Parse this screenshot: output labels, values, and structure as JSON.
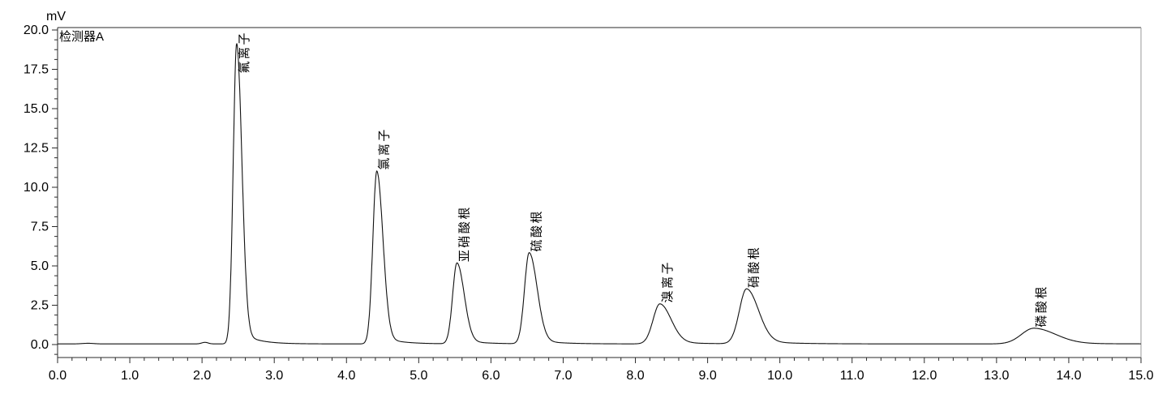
{
  "header": {
    "y_axis_unit": "mV",
    "detector_name": "检测器A"
  },
  "axis": {
    "x_tick_labels": [
      "0.0",
      "1.0",
      "2.0",
      "3.0",
      "4.0",
      "5.0",
      "6.0",
      "7.0",
      "8.0",
      "9.0",
      "10.0",
      "11.0",
      "12.0",
      "13.0",
      "14.0",
      "15.0"
    ],
    "y_tick_labels": [
      "0.0",
      "2.5",
      "5.0",
      "7.5",
      "10.0",
      "12.5",
      "15.0",
      "17.5",
      "20.0"
    ]
  },
  "colors": {
    "background": "#ffffff",
    "trace": "#111111",
    "frame": "#2a2a2a",
    "frame_right": "#9a9a9a",
    "tick": "#2a2a2a",
    "text": "#000000"
  },
  "chart_data": {
    "type": "line",
    "title": "检测器A",
    "xlabel": "",
    "ylabel": "mV",
    "xlim": [
      0.0,
      15.0
    ],
    "ylim": [
      -0.85,
      20.15
    ],
    "grid": false,
    "x_major_tick_step": 1.0,
    "x_minor_tick_step": 0.2,
    "y_major_tick_step": 2.5,
    "y_minor_tick_step": 0.625,
    "baseline_mv": 0.04,
    "peaks": [
      {
        "name": "氟离子",
        "retention_time_min": 2.48,
        "height_mv": 19.1,
        "sigma_left": 0.048,
        "sigma_right": 0.072,
        "tail_frac": 0.05,
        "tail_tau": 0.22
      },
      {
        "name": "氯离子",
        "retention_time_min": 4.42,
        "height_mv": 11.0,
        "sigma_left": 0.055,
        "sigma_right": 0.085,
        "tail_frac": 0.05,
        "tail_tau": 0.25
      },
      {
        "name": "亚硝酸根",
        "retention_time_min": 5.53,
        "height_mv": 5.15,
        "sigma_left": 0.06,
        "sigma_right": 0.1,
        "tail_frac": 0.055,
        "tail_tau": 0.28
      },
      {
        "name": "硫酸根",
        "retention_time_min": 6.53,
        "height_mv": 5.8,
        "sigma_left": 0.065,
        "sigma_right": 0.11,
        "tail_frac": 0.055,
        "tail_tau": 0.3
      },
      {
        "name": "溴离子",
        "retention_time_min": 8.34,
        "height_mv": 2.55,
        "sigma_left": 0.095,
        "sigma_right": 0.155,
        "tail_frac": 0.07,
        "tail_tau": 0.38
      },
      {
        "name": "硝酸根",
        "retention_time_min": 9.54,
        "height_mv": 3.5,
        "sigma_left": 0.1,
        "sigma_right": 0.165,
        "tail_frac": 0.07,
        "tail_tau": 0.42
      },
      {
        "name": "磷酸根",
        "retention_time_min": 13.52,
        "height_mv": 1.0,
        "sigma_left": 0.175,
        "sigma_right": 0.3,
        "tail_frac": 0.08,
        "tail_tau": 0.55
      }
    ],
    "baseline_bumps": [
      {
        "t_min": 2.04,
        "height_mv": 0.1,
        "sigma": 0.045
      },
      {
        "t_min": 0.42,
        "height_mv": 0.04,
        "sigma": 0.08
      }
    ]
  }
}
